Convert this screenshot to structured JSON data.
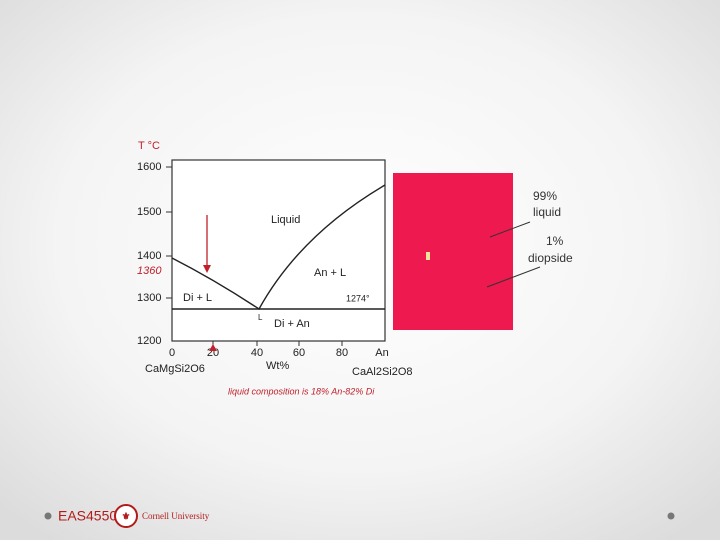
{
  "diagram": {
    "axis": {
      "title": "T °C",
      "y_labels": [
        "1600",
        "1500",
        "1400",
        "1300",
        "1200"
      ],
      "marked_temperature": "1360",
      "x_labels": [
        "0",
        "20",
        "40",
        "60",
        "80",
        "An"
      ],
      "x_title": "Wt%",
      "left_component": "CaMgSi2O6",
      "right_component": "CaAl2Si2O8"
    },
    "fields": {
      "liquid": "Liquid",
      "an_l": "An + L",
      "di_l": "Di + L",
      "eutectic_temp": "1274°",
      "eutectic_label": "L",
      "di_an": "Di + An"
    },
    "caption": "liquid composition is 18% An-82% Di",
    "callouts": {
      "liquid_pct": "99%",
      "liquid": "liquid",
      "diopside_pct": "1%",
      "diopside": "diopside"
    },
    "footer": {
      "course": "EAS4550",
      "university": "Cornell University"
    }
  }
}
